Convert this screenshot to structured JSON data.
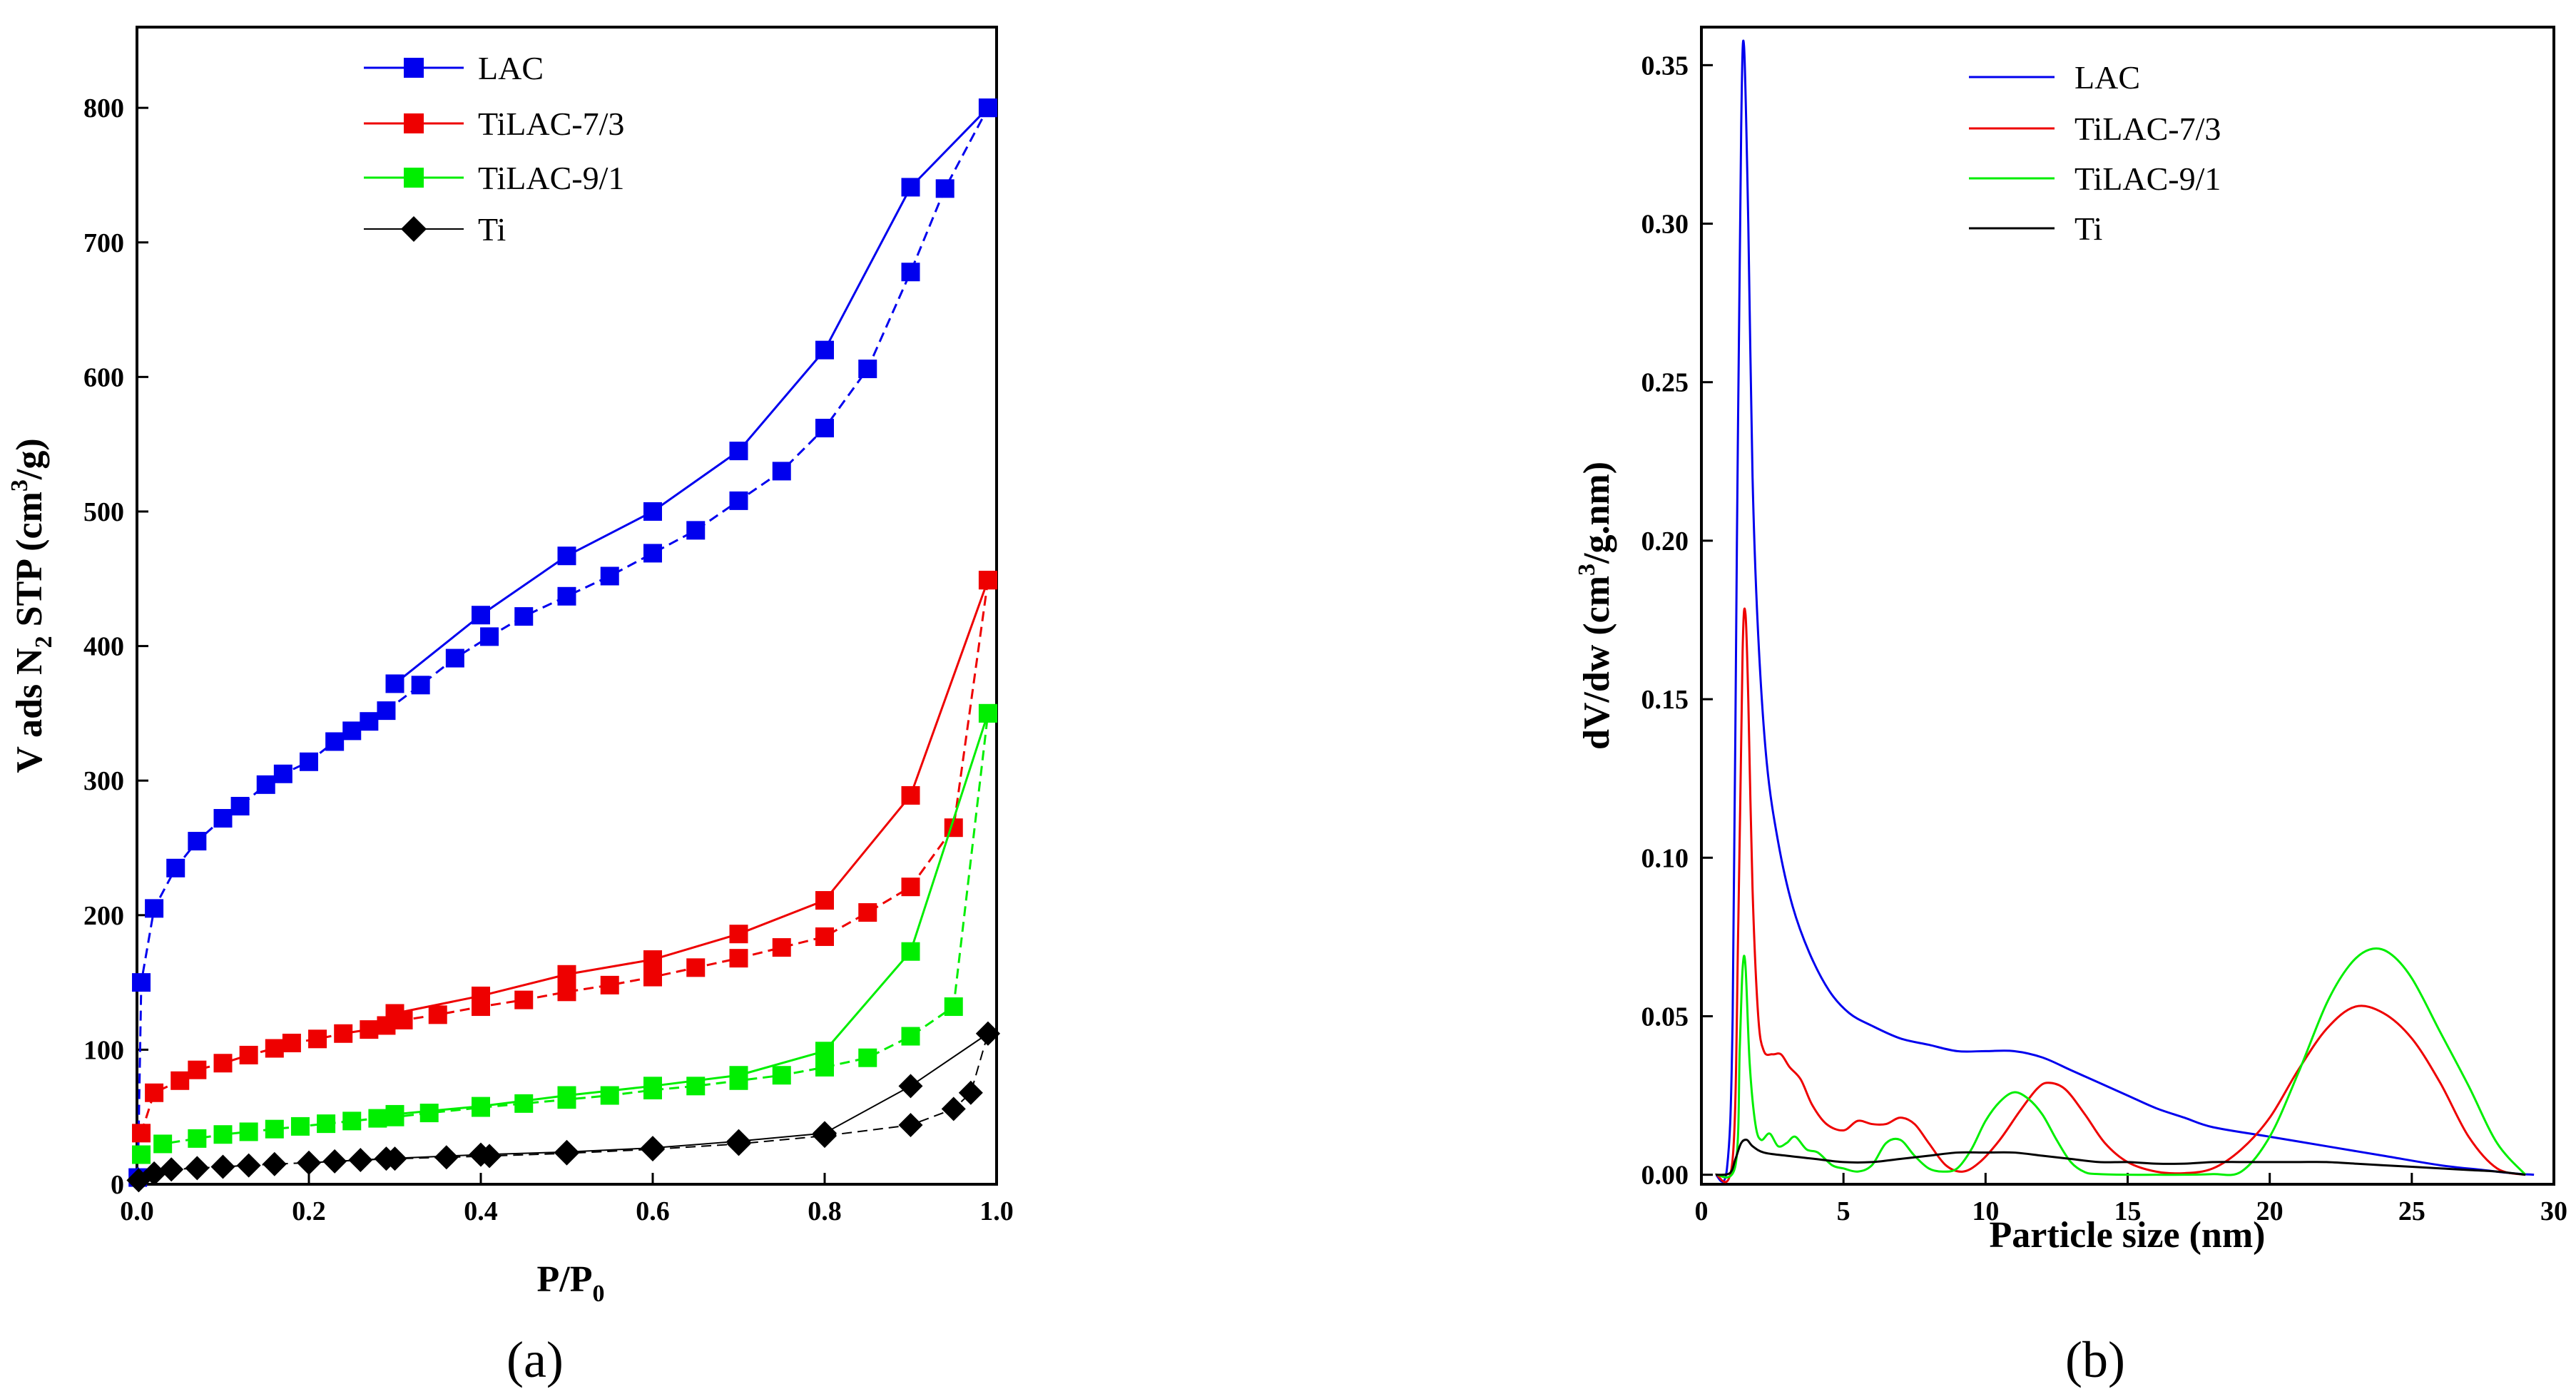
{
  "chart_data": [
    {
      "type": "line",
      "panel_label": "(a)",
      "title": "",
      "xlabel": {
        "main": "P/P",
        "sub": "0"
      },
      "ylabel": {
        "p1": "V ads N",
        "sub": "2",
        "p2": " STP (cm",
        "sup": "3",
        "p3": "/g)"
      },
      "xlim": [
        0,
        1.0
      ],
      "ylim": [
        0,
        860
      ],
      "xticks": [
        0.0,
        0.2,
        0.4,
        0.6,
        0.8,
        1.0
      ],
      "xtick_labels": [
        "0.0",
        "0.2",
        "0.4",
        "0.6",
        "0.8",
        "1.0"
      ],
      "yticks": [
        0,
        100,
        200,
        300,
        400,
        500,
        600,
        700,
        800
      ],
      "ytick_labels": [
        "0",
        "100",
        "200",
        "300",
        "400",
        "500",
        "600",
        "700",
        "800"
      ],
      "legend_position": "top-center",
      "series": [
        {
          "name": "LAC",
          "color": "#0000ee",
          "marker": "square",
          "adsorption_x": [
            0.001,
            0.005,
            0.02,
            0.045,
            0.07,
            0.1,
            0.12,
            0.15,
            0.17,
            0.2,
            0.23,
            0.25,
            0.27,
            0.29,
            0.33,
            0.37,
            0.41,
            0.45,
            0.5,
            0.55,
            0.6,
            0.65,
            0.7,
            0.75,
            0.8,
            0.85,
            0.9,
            0.94,
            0.99
          ],
          "adsorption_y": [
            5,
            150,
            205,
            235,
            255,
            272,
            281,
            297,
            305,
            314,
            329,
            337,
            344,
            352,
            371,
            391,
            407,
            422,
            437,
            452,
            469,
            486,
            508,
            530,
            562,
            606,
            678,
            740,
            800
          ],
          "desorption_x": [
            0.99,
            0.9,
            0.8,
            0.7,
            0.6,
            0.5,
            0.4,
            0.3
          ],
          "desorption_y": [
            800,
            741,
            620,
            545,
            500,
            467,
            423,
            372
          ]
        },
        {
          "name": "TiLAC-7/3",
          "color": "#ee0000",
          "marker": "square",
          "adsorption_x": [
            0.005,
            0.02,
            0.05,
            0.07,
            0.1,
            0.13,
            0.16,
            0.18,
            0.21,
            0.24,
            0.27,
            0.29,
            0.31,
            0.35,
            0.4,
            0.45,
            0.5,
            0.55,
            0.6,
            0.65,
            0.7,
            0.75,
            0.8,
            0.85,
            0.9,
            0.95,
            0.99
          ],
          "adsorption_y": [
            38,
            68,
            77,
            85,
            90,
            96,
            101,
            105,
            108,
            112,
            115,
            118,
            122,
            126,
            132,
            137,
            143,
            148,
            154,
            161,
            168,
            176,
            184,
            202,
            221,
            265,
            449
          ],
          "desorption_x": [
            0.99,
            0.9,
            0.8,
            0.7,
            0.6,
            0.5,
            0.4,
            0.3
          ],
          "desorption_y": [
            449,
            289,
            211,
            186,
            167,
            156,
            140,
            127
          ]
        },
        {
          "name": "TiLAC-9/1",
          "color": "#00ee00",
          "marker": "square",
          "adsorption_x": [
            0.005,
            0.03,
            0.07,
            0.1,
            0.13,
            0.16,
            0.19,
            0.22,
            0.25,
            0.28,
            0.3,
            0.34,
            0.4,
            0.45,
            0.5,
            0.55,
            0.6,
            0.65,
            0.7,
            0.75,
            0.8,
            0.85,
            0.9,
            0.95,
            0.99
          ],
          "adsorption_y": [
            22,
            30,
            34,
            37,
            39,
            41,
            43,
            45,
            47,
            49,
            50,
            53,
            57,
            60,
            63,
            66,
            70,
            73,
            77,
            81,
            87,
            94,
            110,
            132,
            350
          ],
          "desorption_x": [
            0.99,
            0.9,
            0.8,
            0.7,
            0.6,
            0.5,
            0.4,
            0.3
          ],
          "desorption_y": [
            350,
            173,
            99,
            81,
            73,
            66,
            58,
            52
          ]
        },
        {
          "name": "Ti",
          "color": "#000000",
          "marker": "diamond",
          "adsorption_x": [
            0.002,
            0.02,
            0.04,
            0.07,
            0.1,
            0.13,
            0.16,
            0.2,
            0.23,
            0.26,
            0.3,
            0.36,
            0.41,
            0.5,
            0.6,
            0.7,
            0.8,
            0.9,
            0.95,
            0.97,
            0.99
          ],
          "adsorption_y": [
            3,
            8,
            11,
            12,
            13,
            14,
            15,
            16,
            17,
            18,
            19,
            20,
            21,
            23,
            26,
            30,
            36,
            44,
            56,
            68,
            112
          ],
          "desorption_x": [
            0.99,
            0.9,
            0.8,
            0.7,
            0.6,
            0.5,
            0.4,
            0.29,
            0.2
          ],
          "desorption_y": [
            112,
            73,
            38,
            32,
            27,
            24,
            22,
            19,
            16
          ]
        }
      ]
    },
    {
      "type": "line",
      "panel_label": "(b)",
      "title": "",
      "xlabel": {
        "main": "Particle size (nm)"
      },
      "ylabel": {
        "p1": "dV/dw (cm",
        "sup": "3",
        "p2": "/g.nm)"
      },
      "xlim": [
        0,
        30
      ],
      "ylim": [
        -0.003,
        0.362
      ],
      "xticks": [
        0,
        5,
        10,
        15,
        20,
        25,
        30
      ],
      "xtick_labels": [
        "0",
        "5",
        "10",
        "15",
        "20",
        "25",
        "30"
      ],
      "yticks": [
        0.0,
        0.05,
        0.1,
        0.15,
        0.2,
        0.25,
        0.3,
        0.35
      ],
      "ytick_labels": [
        "0.00",
        "0.05",
        "0.10",
        "0.15",
        "0.20",
        "0.25",
        "0.30",
        "0.35"
      ],
      "legend_position": "top-center",
      "series": [
        {
          "name": "LAC",
          "color": "#0000ee",
          "x": [
            0.5,
            0.9,
            1.1,
            1.25,
            1.4,
            1.5,
            1.65,
            1.8,
            2.0,
            2.3,
            2.7,
            3.2,
            3.8,
            4.5,
            5.2,
            6.0,
            7.0,
            8.0,
            9.0,
            10.0,
            11.0,
            12.0,
            13.0,
            14.0,
            15.0,
            16.0,
            17.0,
            18.0,
            20.0,
            22.0,
            24.0,
            26.0,
            27.5,
            28.5,
            29.3
          ],
          "y": [
            0.0,
            0.002,
            0.05,
            0.2,
            0.33,
            0.356,
            0.3,
            0.22,
            0.17,
            0.13,
            0.105,
            0.085,
            0.07,
            0.058,
            0.051,
            0.047,
            0.043,
            0.041,
            0.039,
            0.039,
            0.039,
            0.037,
            0.033,
            0.029,
            0.025,
            0.021,
            0.018,
            0.015,
            0.012,
            0.009,
            0.006,
            0.003,
            0.0015,
            0.0005,
            0.0
          ]
        },
        {
          "name": "TiLAC-7/3",
          "color": "#ee0000",
          "x": [
            0.5,
            1.1,
            1.3,
            1.45,
            1.55,
            1.65,
            1.8,
            2.0,
            2.2,
            2.5,
            2.8,
            3.1,
            3.5,
            3.9,
            4.4,
            5.0,
            5.5,
            6.0,
            6.5,
            7.0,
            7.5,
            8.0,
            8.6,
            9.2,
            9.8,
            10.5,
            11.2,
            11.8,
            12.2,
            12.8,
            13.5,
            14.2,
            15.0,
            16.0,
            17.0,
            18.0,
            19.0,
            20.0,
            21.0,
            22.0,
            23.0,
            24.0,
            25.0,
            26.0,
            27.0,
            28.0,
            29.0
          ],
          "y": [
            0.0,
            0.005,
            0.08,
            0.165,
            0.177,
            0.15,
            0.09,
            0.05,
            0.039,
            0.038,
            0.038,
            0.034,
            0.03,
            0.022,
            0.016,
            0.014,
            0.017,
            0.016,
            0.016,
            0.018,
            0.016,
            0.01,
            0.003,
            0.001,
            0.004,
            0.011,
            0.02,
            0.027,
            0.029,
            0.027,
            0.019,
            0.01,
            0.004,
            0.001,
            0.0005,
            0.002,
            0.008,
            0.018,
            0.033,
            0.046,
            0.053,
            0.051,
            0.043,
            0.029,
            0.012,
            0.002,
            0.0
          ]
        },
        {
          "name": "TiLAC-9/1",
          "color": "#00ee00",
          "x": [
            0.5,
            1.2,
            1.35,
            1.45,
            1.55,
            1.7,
            1.9,
            2.1,
            2.4,
            2.7,
            3.0,
            3.3,
            3.7,
            4.1,
            4.6,
            5.0,
            5.5,
            6.0,
            6.5,
            7.0,
            7.5,
            8.0,
            8.5,
            9.0,
            9.5,
            10.0,
            10.5,
            11.0,
            11.5,
            12.0,
            12.5,
            13.0,
            13.5,
            14.0,
            15.0,
            16.0,
            17.0,
            18.0,
            19.0,
            20.0,
            21.0,
            22.0,
            22.8,
            23.5,
            24.2,
            25.0,
            26.0,
            27.0,
            28.0,
            29.0
          ],
          "y": [
            0.0,
            0.003,
            0.04,
            0.065,
            0.066,
            0.035,
            0.016,
            0.011,
            0.013,
            0.009,
            0.01,
            0.012,
            0.008,
            0.007,
            0.003,
            0.002,
            0.001,
            0.003,
            0.01,
            0.011,
            0.006,
            0.002,
            0.001,
            0.002,
            0.008,
            0.017,
            0.023,
            0.026,
            0.024,
            0.019,
            0.011,
            0.004,
            0.0008,
            0.0002,
            0.0,
            0.0,
            0.0,
            0.0002,
            0.001,
            0.012,
            0.032,
            0.054,
            0.066,
            0.071,
            0.07,
            0.062,
            0.045,
            0.028,
            0.01,
            0.0
          ]
        },
        {
          "name": "Ti",
          "color": "#000000",
          "x": [
            0.5,
            1.0,
            1.2,
            1.4,
            1.6,
            1.8,
            2.2,
            3.0,
            4.0,
            5.0,
            6.0,
            7.0,
            8.0,
            9.0,
            10.0,
            11.0,
            12.0,
            13.0,
            14.0,
            15.0,
            16.0,
            17.0,
            18.0,
            19.0,
            20.0,
            21.0,
            22.0,
            23.0,
            24.0,
            25.0,
            26.0,
            27.0,
            28.0,
            29.0
          ],
          "y": [
            0.0,
            0.0005,
            0.005,
            0.01,
            0.011,
            0.009,
            0.007,
            0.006,
            0.005,
            0.004,
            0.004,
            0.005,
            0.006,
            0.007,
            0.007,
            0.007,
            0.006,
            0.005,
            0.004,
            0.004,
            0.0035,
            0.0035,
            0.004,
            0.004,
            0.004,
            0.004,
            0.004,
            0.0035,
            0.003,
            0.0025,
            0.002,
            0.0015,
            0.001,
            0.0
          ]
        }
      ]
    }
  ]
}
